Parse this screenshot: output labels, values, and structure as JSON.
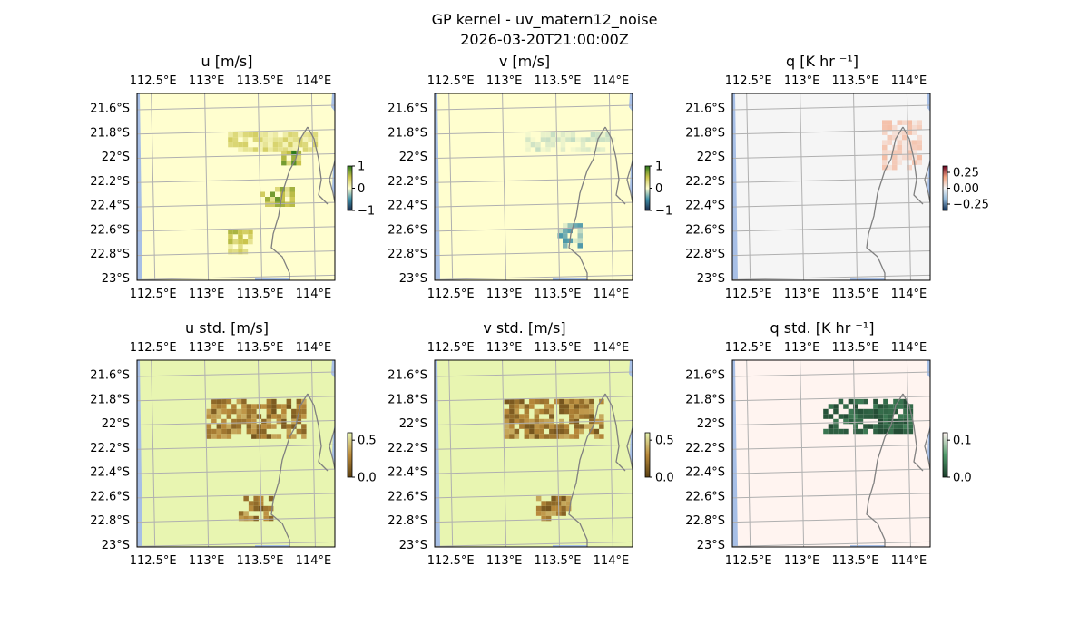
{
  "figure": {
    "suptitle_line1": "GP kernel - uv_matern12_noise",
    "suptitle_line2": "2026-03-20T21:00:00Z"
  },
  "axes_ticks": {
    "lon_labels": [
      "112.5°E",
      "113°E",
      "113.5°E",
      "114°E"
    ],
    "lat_labels": [
      "21.6°S",
      "21.8°S",
      "22°S",
      "22.2°S",
      "22.4°S",
      "22.6°S",
      "22.8°S",
      "23°S"
    ]
  },
  "chart_data": [
    {
      "type": "heatmap",
      "title": "u [m/s]",
      "colormap": [
        "#1b2a4a",
        "#3e8fa6",
        "#fefecf",
        "#c9c34a",
        "#2d7a1d"
      ],
      "background_color": "#fffecf",
      "colorbar": {
        "ticks": [
          "1",
          "0",
          "−1"
        ],
        "values": [
          1,
          0,
          -1
        ],
        "range": [
          -1,
          1
        ]
      },
      "map_extent": {
        "lon": [
          112.35,
          114.2
        ],
        "lat": [
          -23.02,
          -21.48
        ]
      },
      "blobs": [
        {
          "lon": [
            113.2,
            114.0
          ],
          "lat": [
            -21.8,
            -21.95
          ],
          "value": 0.2
        },
        {
          "lon": [
            113.7,
            113.85
          ],
          "lat": [
            -21.95,
            -22.05
          ],
          "value": 0.5
        },
        {
          "lon": [
            113.5,
            113.8
          ],
          "lat": [
            -22.25,
            -22.4
          ],
          "value": 0.4
        },
        {
          "lon": [
            113.2,
            113.4
          ],
          "lat": [
            -22.6,
            -22.8
          ],
          "value": 0.3
        }
      ]
    },
    {
      "type": "heatmap",
      "title": "v [m/s]",
      "colormap": [
        "#1b2a4a",
        "#3e8fa6",
        "#fefecf",
        "#c9c34a",
        "#2d7a1d"
      ],
      "background_color": "#fffecf",
      "colorbar": {
        "ticks": [
          "1",
          "0",
          "−1"
        ],
        "values": [
          1,
          0,
          -1
        ],
        "range": [
          -1,
          1
        ]
      },
      "map_extent": {
        "lon": [
          112.35,
          114.2
        ],
        "lat": [
          -23.02,
          -21.48
        ]
      },
      "blobs": [
        {
          "lon": [
            113.2,
            114.0
          ],
          "lat": [
            -21.8,
            -21.95
          ],
          "value": -0.1
        },
        {
          "lon": [
            113.5,
            113.7
          ],
          "lat": [
            -22.55,
            -22.75
          ],
          "value": -0.3
        }
      ]
    },
    {
      "type": "heatmap",
      "title": "q [K hr ⁻¹]",
      "colormap": [
        "#0b2a50",
        "#8fb7d8",
        "#f5f5f5",
        "#f4a582",
        "#67001f"
      ],
      "background_color": "#f5f5f5",
      "colorbar": {
        "ticks": [
          "0.25",
          "0.00",
          "−0.25"
        ],
        "values": [
          0.25,
          0.0,
          -0.25
        ],
        "range": [
          -0.35,
          0.35
        ]
      },
      "map_extent": {
        "lon": [
          112.35,
          114.2
        ],
        "lat": [
          -23.02,
          -21.48
        ]
      },
      "blobs": [
        {
          "lon": [
            113.75,
            114.1
          ],
          "lat": [
            -21.7,
            -22.1
          ],
          "value": 0.06
        }
      ]
    },
    {
      "type": "heatmap",
      "title": "u std. [m/s]",
      "colormap": [
        "#5a3f12",
        "#b8893a",
        "#e8f5b1"
      ],
      "background_color": "#e8f5b1",
      "colorbar": {
        "ticks": [
          "0.5",
          "0.0"
        ],
        "values": [
          0.5,
          0.0
        ],
        "range": [
          0,
          0.6
        ]
      },
      "map_extent": {
        "lon": [
          112.35,
          114.2
        ],
        "lat": [
          -23.02,
          -21.48
        ]
      },
      "blobs": [
        {
          "lon": [
            113.0,
            113.9
          ],
          "lat": [
            -21.8,
            -22.1
          ],
          "value": 0.2
        },
        {
          "lon": [
            113.3,
            113.6
          ],
          "lat": [
            -22.6,
            -22.8
          ],
          "value": 0.2
        }
      ]
    },
    {
      "type": "heatmap",
      "title": "v std. [m/s]",
      "colormap": [
        "#5a3f12",
        "#b8893a",
        "#e8f5b1"
      ],
      "background_color": "#e8f5b1",
      "colorbar": {
        "ticks": [
          "0.5",
          "0.0"
        ],
        "values": [
          0.5,
          0.0
        ],
        "range": [
          0,
          0.6
        ]
      },
      "map_extent": {
        "lon": [
          112.35,
          114.2
        ],
        "lat": [
          -23.02,
          -21.48
        ]
      },
      "blobs": [
        {
          "lon": [
            113.0,
            113.9
          ],
          "lat": [
            -21.8,
            -22.1
          ],
          "value": 0.2
        },
        {
          "lon": [
            113.3,
            113.6
          ],
          "lat": [
            -22.6,
            -22.8
          ],
          "value": 0.2
        }
      ]
    },
    {
      "type": "heatmap",
      "title": "q std. [K hr ⁻¹]",
      "colormap": [
        "#1a3d2a",
        "#4f9a6a",
        "#fff4f0"
      ],
      "background_color": "#fff4f0",
      "colorbar": {
        "ticks": [
          "0.1",
          "0.0"
        ],
        "values": [
          0.1,
          0.0
        ],
        "range": [
          0,
          0.12
        ]
      },
      "map_extent": {
        "lon": [
          112.35,
          114.2
        ],
        "lat": [
          -23.02,
          -21.48
        ]
      },
      "blobs": [
        {
          "lon": [
            113.2,
            114.0
          ],
          "lat": [
            -21.8,
            -22.05
          ],
          "value": 0.02
        }
      ]
    }
  ]
}
